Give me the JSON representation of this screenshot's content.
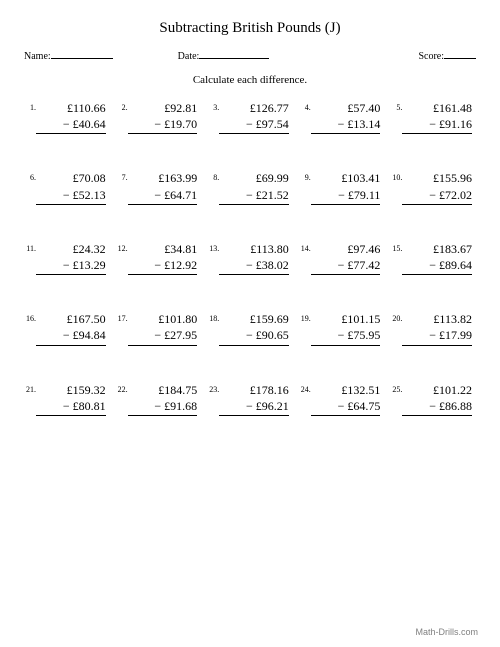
{
  "title": "Subtracting British Pounds (J)",
  "labels": {
    "name": "Name:",
    "date": "Date:",
    "score": "Score:",
    "instruction": "Calculate each difference."
  },
  "currency": "£",
  "minus": "−",
  "line_widths": {
    "name": 62,
    "date": 70,
    "score": 32
  },
  "colors": {
    "background": "#ffffff",
    "text": "#000000",
    "footer": "#808080",
    "border": "#000000"
  },
  "problems": [
    {
      "n": "1.",
      "a": "110.66",
      "b": "40.64"
    },
    {
      "n": "2.",
      "a": "92.81",
      "b": "19.70"
    },
    {
      "n": "3.",
      "a": "126.77",
      "b": "97.54"
    },
    {
      "n": "4.",
      "a": "57.40",
      "b": "13.14"
    },
    {
      "n": "5.",
      "a": "161.48",
      "b": "91.16"
    },
    {
      "n": "6.",
      "a": "70.08",
      "b": "52.13"
    },
    {
      "n": "7.",
      "a": "163.99",
      "b": "64.71"
    },
    {
      "n": "8.",
      "a": "69.99",
      "b": "21.52"
    },
    {
      "n": "9.",
      "a": "103.41",
      "b": "79.11"
    },
    {
      "n": "10.",
      "a": "155.96",
      "b": "72.02"
    },
    {
      "n": "11.",
      "a": "24.32",
      "b": "13.29"
    },
    {
      "n": "12.",
      "a": "34.81",
      "b": "12.92"
    },
    {
      "n": "13.",
      "a": "113.80",
      "b": "38.02"
    },
    {
      "n": "14.",
      "a": "97.46",
      "b": "77.42"
    },
    {
      "n": "15.",
      "a": "183.67",
      "b": "89.64"
    },
    {
      "n": "16.",
      "a": "167.50",
      "b": "94.84"
    },
    {
      "n": "17.",
      "a": "101.80",
      "b": "27.95"
    },
    {
      "n": "18.",
      "a": "159.69",
      "b": "90.65"
    },
    {
      "n": "19.",
      "a": "101.15",
      "b": "75.95"
    },
    {
      "n": "20.",
      "a": "113.82",
      "b": "17.99"
    },
    {
      "n": "21.",
      "a": "159.32",
      "b": "80.81"
    },
    {
      "n": "22.",
      "a": "184.75",
      "b": "91.68"
    },
    {
      "n": "23.",
      "a": "178.16",
      "b": "96.21"
    },
    {
      "n": "24.",
      "a": "132.51",
      "b": "64.75"
    },
    {
      "n": "25.",
      "a": "101.22",
      "b": "86.88"
    }
  ],
  "footer": "Math-Drills.com"
}
